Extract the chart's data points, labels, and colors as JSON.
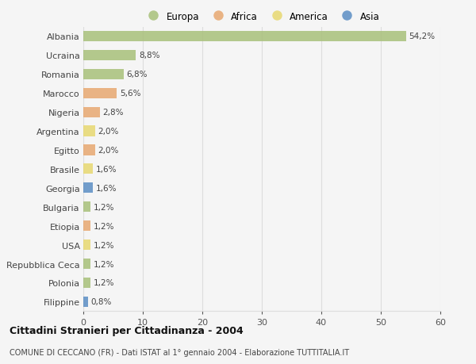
{
  "countries": [
    "Albania",
    "Ucraina",
    "Romania",
    "Marocco",
    "Nigeria",
    "Argentina",
    "Egitto",
    "Brasile",
    "Georgia",
    "Bulgaria",
    "Etiopia",
    "USA",
    "Repubblica Ceca",
    "Polonia",
    "Filippine"
  ],
  "values": [
    54.2,
    8.8,
    6.8,
    5.6,
    2.8,
    2.0,
    2.0,
    1.6,
    1.6,
    1.2,
    1.2,
    1.2,
    1.2,
    1.2,
    0.8
  ],
  "labels": [
    "54,2%",
    "8,8%",
    "6,8%",
    "5,6%",
    "2,8%",
    "2,0%",
    "2,0%",
    "1,6%",
    "1,6%",
    "1,2%",
    "1,2%",
    "1,2%",
    "1,2%",
    "1,2%",
    "0,8%"
  ],
  "continent": [
    "Europa",
    "Europa",
    "Europa",
    "Africa",
    "Africa",
    "America",
    "Africa",
    "America",
    "Asia",
    "Europa",
    "Africa",
    "America",
    "Europa",
    "Europa",
    "Asia"
  ],
  "colors": {
    "Europa": "#a8c07a",
    "Africa": "#e8a870",
    "America": "#e8d870",
    "Asia": "#5b8ec4"
  },
  "legend_order": [
    "Europa",
    "Africa",
    "America",
    "Asia"
  ],
  "title": "Cittadini Stranieri per Cittadinanza - 2004",
  "subtitle": "COMUNE DI CECCANO (FR) - Dati ISTAT al 1° gennaio 2004 - Elaborazione TUTTITALIA.IT",
  "xlim": [
    0,
    60
  ],
  "xticks": [
    0,
    10,
    20,
    30,
    40,
    50,
    60
  ],
  "background_color": "#f5f5f5",
  "grid_color": "#dddddd"
}
